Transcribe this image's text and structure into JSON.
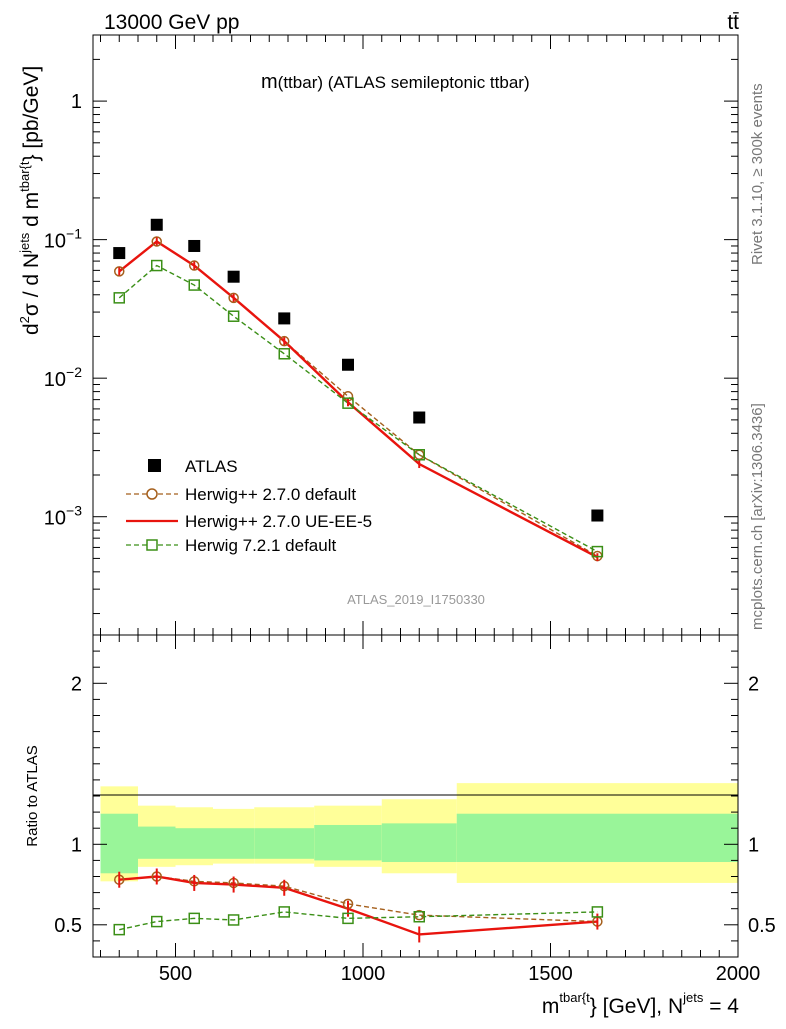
{
  "header": {
    "left": "13000 GeV pp",
    "right": "tt̄"
  },
  "side_labels": {
    "rivet": "Rivet 3.1.10, ≥ 300k events",
    "mcplots": "mcplots.cern.ch [arXiv:1306.3436]"
  },
  "watermark": "ATLAS_2019_I1750330",
  "chart_data": [
    {
      "type": "scatter",
      "id": "main",
      "title": "m(ttbar) (ATLAS semileptonic ttbar)",
      "title_prefix": "m",
      "title_rest": "(ttbar) (ATLAS semileptonic ttbar)",
      "yscale": "log",
      "xlim": [
        280,
        2000
      ],
      "ylim": [
        0.00014,
        3.0
      ],
      "ylabel": {
        "d2": "d",
        "sup2": "2",
        "sigma": "σ",
        "slash": "  /  d N",
        "jets": "jets",
        "dm": " d m",
        "tbar": "tbar{t",
        "units": "} [pb/GeV]"
      },
      "yticks": [
        {
          "value": 1,
          "label": "1"
        },
        {
          "value": 0.1,
          "base": "10",
          "exp": "−1"
        },
        {
          "value": 0.01,
          "base": "10",
          "exp": "−2"
        },
        {
          "value": 0.001,
          "base": "10",
          "exp": "−3"
        }
      ],
      "legend": {
        "position": "lower-left",
        "entries": [
          "ATLAS",
          "Herwig++ 2.7.0 default",
          "Herwig++ 2.7.0 UE-EE-5",
          "Herwig 7.2.1 default"
        ]
      },
      "series": [
        {
          "name": "ATLAS",
          "color": "#000000",
          "style": "square-markers",
          "x": [
            350,
            450,
            550,
            655,
            790,
            960,
            1150,
            1625
          ],
          "values": [
            0.08,
            0.128,
            0.09,
            0.054,
            0.027,
            0.0125,
            0.0052,
            0.00102
          ]
        },
        {
          "name": "Herwig++ 2.7.0 default",
          "color": "#a55f1c",
          "style": "dashed-circles",
          "x": [
            350,
            450,
            550,
            655,
            790,
            960,
            1150,
            1625
          ],
          "values": [
            0.059,
            0.097,
            0.065,
            0.038,
            0.0185,
            0.0074,
            0.0028,
            0.00052
          ]
        },
        {
          "name": "Herwig++ 2.7.0 UE-EE-5",
          "color": "#e8140e",
          "style": "solid",
          "x": [
            350,
            450,
            550,
            655,
            790,
            960,
            1150,
            1625
          ],
          "values": [
            0.059,
            0.097,
            0.065,
            0.038,
            0.0185,
            0.0067,
            0.0024,
            0.00051
          ]
        },
        {
          "name": "Herwig 7.2.1 default",
          "color": "#3b8f17",
          "style": "dashed-squares",
          "x": [
            350,
            450,
            550,
            655,
            790,
            960,
            1150,
            1625
          ],
          "values": [
            0.038,
            0.065,
            0.047,
            0.028,
            0.015,
            0.0066,
            0.0028,
            0.00056
          ]
        }
      ]
    },
    {
      "type": "line",
      "id": "ratio",
      "ylabel": "Ratio to ATLAS",
      "xlabel": {
        "m": "m",
        "sup": "tbar{t",
        "mid": "} [GeV], N",
        "jets": "jets",
        "end": " = 4"
      },
      "xlim": [
        280,
        2000
      ],
      "ylim": [
        0.3,
        2.3
      ],
      "xticks": [
        "500",
        "1000",
        "1500",
        "2000"
      ],
      "xtick_values": [
        500,
        1000,
        1500,
        2000
      ],
      "yticks": [
        "0.5",
        "1",
        "2"
      ],
      "ytick_values": [
        0.5,
        1,
        2
      ],
      "bands": {
        "edges": [
          300,
          400,
          500,
          600,
          710,
          870,
          1050,
          1250,
          2000
        ],
        "inner": [
          [
            0.82,
            1.19
          ],
          [
            0.91,
            1.11
          ],
          [
            0.91,
            1.1
          ],
          [
            0.91,
            1.1
          ],
          [
            0.91,
            1.1
          ],
          [
            0.9,
            1.12
          ],
          [
            0.89,
            1.13
          ],
          [
            0.89,
            1.19
          ]
        ],
        "outer": [
          [
            0.77,
            1.36
          ],
          [
            0.86,
            1.24
          ],
          [
            0.87,
            1.23
          ],
          [
            0.88,
            1.22
          ],
          [
            0.88,
            1.23
          ],
          [
            0.86,
            1.24
          ],
          [
            0.82,
            1.28
          ],
          [
            0.76,
            1.38
          ]
        ]
      },
      "series": [
        {
          "name": "Herwig++ 2.7.0 default",
          "color": "#a55f1c",
          "style": "dashed-circles",
          "x": [
            350,
            450,
            550,
            655,
            790,
            960,
            1150,
            1625
          ],
          "values": [
            0.78,
            0.8,
            0.77,
            0.76,
            0.74,
            0.63,
            0.56,
            0.52
          ]
        },
        {
          "name": "Herwig++ 2.7.0 UE-EE-5",
          "color": "#e8140e",
          "style": "solid",
          "x": [
            350,
            450,
            550,
            655,
            790,
            960,
            1150,
            1625
          ],
          "values": [
            0.78,
            0.8,
            0.76,
            0.75,
            0.73,
            0.6,
            0.44,
            0.52
          ]
        },
        {
          "name": "Herwig 7.2.1 default",
          "color": "#3b8f17",
          "style": "dashed-squares",
          "x": [
            350,
            450,
            550,
            655,
            790,
            960,
            1150,
            1625
          ],
          "values": [
            0.47,
            0.52,
            0.54,
            0.53,
            0.58,
            0.54,
            0.55,
            0.58
          ]
        }
      ]
    }
  ]
}
